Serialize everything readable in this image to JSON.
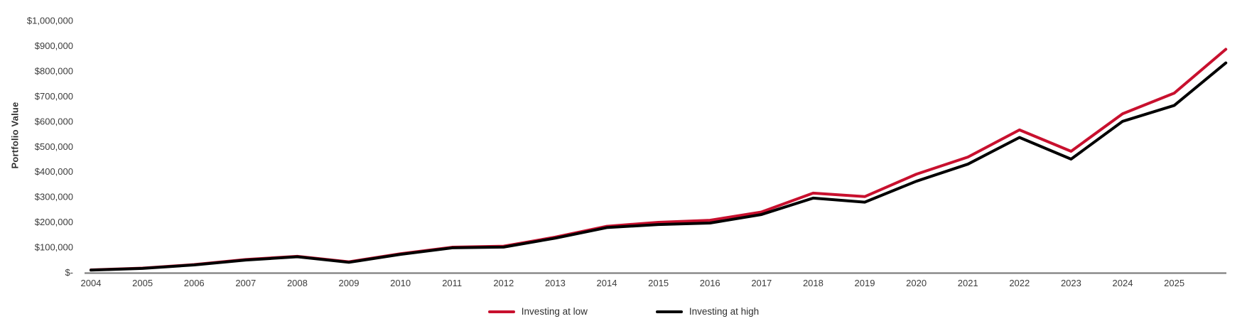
{
  "chart_data": {
    "type": "line",
    "title": "",
    "ylabel": "Portfolio Value",
    "xlabel": "",
    "grid": false,
    "background": "#ffffff",
    "axis_line_color": "#7f7f7f",
    "tick_text_color": "#3b3b3b",
    "ylim": [
      0,
      1000000
    ],
    "y_ticks": [
      1000000,
      900000,
      800000,
      700000,
      600000,
      500000,
      400000,
      300000,
      200000,
      100000,
      0
    ],
    "y_tick_labels": [
      "$1,000,000",
      "$900,000",
      "$800,000",
      "$700,000",
      "$600,000",
      "$500,000",
      "$400,000",
      "$300,000",
      "$200,000",
      "$100,000",
      "$-"
    ],
    "x": [
      2004,
      2005,
      2006,
      2007,
      2008,
      2009,
      2010,
      2011,
      2012,
      2013,
      2014,
      2015,
      2016,
      2017,
      2018,
      2019,
      2020,
      2021,
      2022,
      2023,
      2024,
      2025,
      2026
    ],
    "x_tick_labels": [
      "2004",
      "2005",
      "2006",
      "2007",
      "2008",
      "2009",
      "2010",
      "2011",
      "2012",
      "2013",
      "2014",
      "2015",
      "2016",
      "2017",
      "2018",
      "2019",
      "2020",
      "2021",
      "2022",
      "2023",
      "2024",
      "2025"
    ],
    "x_note": "series contain one final unlabeled point past the 2025 tick (end of 2025)",
    "legend_position": "bottom-center",
    "series": [
      {
        "name": "Investing at low",
        "color": "#c8102e",
        "line_width": 4,
        "values": [
          10000,
          17000,
          31000,
          51000,
          64000,
          42000,
          74000,
          100000,
          104000,
          140000,
          183000,
          199000,
          207000,
          240000,
          315000,
          301000,
          390000,
          458000,
          566000,
          481000,
          630000,
          712000,
          886000
        ]
      },
      {
        "name": "Investing at high",
        "color": "#000000",
        "line_width": 4,
        "values": [
          9000,
          16000,
          29500,
          49000,
          62000,
          40000,
          71500,
          97500,
          100500,
          136000,
          178000,
          190000,
          196000,
          230000,
          295000,
          279000,
          362000,
          430000,
          536000,
          450000,
          600000,
          663000,
          832000
        ]
      }
    ]
  }
}
